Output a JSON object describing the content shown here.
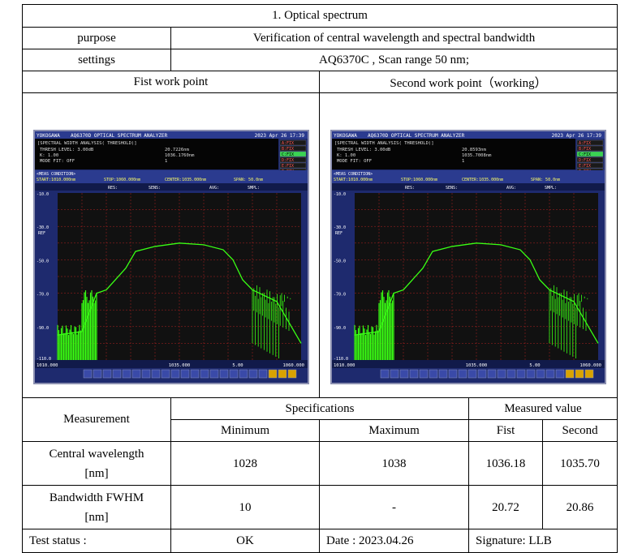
{
  "section": {
    "title": "1.    Optical spectrum"
  },
  "purpose": {
    "label": "purpose",
    "value": "Verification of central wavelength and spectral bandwidth"
  },
  "settings": {
    "label": "settings",
    "value": "AQ6370C , Scan range 50 nm;"
  },
  "work_points": {
    "first": "Fist work point",
    "second": "Second work point（working）"
  },
  "osa": {
    "brand": "YOKOGAWA",
    "model": "AQ6370D OPTICAL SPECTRUM ANALYZER",
    "date": "2023 Apr 26 17:39",
    "analysis": "[SPECTRAL WIDTH ANALYSIS( THRESHOLD)]",
    "thresh": "THRESH LEVEL:  3.00dB",
    "k": "K:  1.00",
    "modefit": "MODE FIT: OFF",
    "meas": "<MEAS CONDITION>",
    "start": "START:1010.000nm",
    "stop": "STOP:1060.000nm",
    "center": "CENTER:1035.000nm",
    "span": "SPAN: 50.0nm",
    "res": "RES:",
    "sens": "SENS:",
    "avg": "AVG:",
    "smpl": "SMPL:",
    "ref": "REF",
    "y_ticks": [
      "-10.0",
      "-30.0",
      "-50.0",
      "-70.0",
      "-90.0",
      "-110.0"
    ],
    "x_start": "1010.000",
    "x_center": "1035.000",
    "x_stop": "1060.000",
    "x_div": "5.00",
    "side": [
      "A:FIX",
      "B:FIX",
      "C:FIX",
      "D:FIX",
      "E:FIX",
      "F:FIX"
    ],
    "first": {
      "width": "20.7226nm",
      "center": "1036.1760nm",
      "mode": "1"
    },
    "second": {
      "width": "20.8593nm",
      "center": "1035.7008nm",
      "mode": "1"
    }
  },
  "headers": {
    "measurement": "Measurement",
    "specifications": "Specifications",
    "measured": "Measured value",
    "minimum": "Minimum",
    "maximum": "Maximum",
    "fist": "Fist",
    "second": "Second"
  },
  "rows": [
    {
      "name_line1": "Central wavelength",
      "name_line2": "[nm]",
      "min": "1028",
      "max": "1038",
      "fist": "1036.18",
      "second": "1035.70"
    },
    {
      "name_line1": "Bandwidth FWHM",
      "name_line2": "[nm]",
      "min": "10",
      "max": "-",
      "fist": "20.72",
      "second": "20.86"
    }
  ],
  "status": {
    "label": "Test status :",
    "value": "OK",
    "date": "Date : 2023.04.26",
    "signature": "Signature: LLB"
  },
  "chart_data": {
    "type": "line",
    "x": [
      1010,
      1015,
      1018,
      1020,
      1024,
      1026,
      1030,
      1035,
      1040,
      1044,
      1046,
      1048,
      1050,
      1055,
      1060
    ],
    "series": [
      {
        "values": [
          -95,
          -93,
          -70,
          -68,
          -55,
          -45,
          -42,
          -40,
          -41,
          -44,
          -50,
          -62,
          -68,
          -75,
          -100
        ]
      }
    ],
    "xlim": [
      1010,
      1060
    ],
    "ylim": [
      -110,
      -10
    ],
    "grid": true,
    "colors": {
      "screen": "#1e2a6e",
      "plot": "#111111",
      "trace": "#39ff14",
      "grid": "#b22222"
    }
  }
}
